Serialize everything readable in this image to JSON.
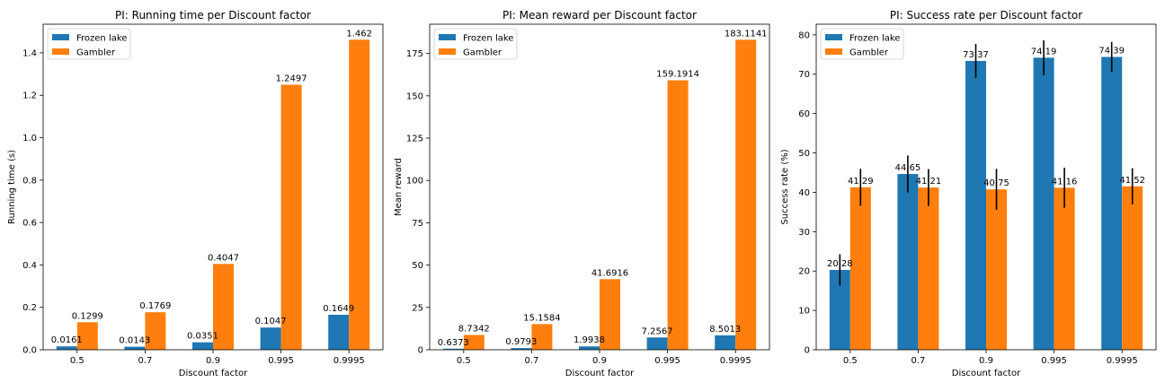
{
  "chart_data": [
    {
      "type": "bar",
      "title": "PI: Running time per Discount factor",
      "xlabel": "Discount factor",
      "ylabel": "Running time (s)",
      "categories": [
        "0.5",
        "0.7",
        "0.9",
        "0.995",
        "0.9995"
      ],
      "ylim": [
        0,
        1.535
      ],
      "yticks": [
        "0.0",
        "0.2",
        "0.4",
        "0.6",
        "0.8",
        "1.0",
        "1.2",
        "1.4"
      ],
      "ytick_values": [
        0,
        0.2,
        0.4,
        0.6,
        0.8,
        1.0,
        1.2,
        1.4
      ],
      "legend_position": "top-left",
      "grid": false,
      "series": [
        {
          "name": "Frozen lake",
          "color": "#1f77b4",
          "values": [
            0.0161,
            0.0143,
            0.0351,
            0.1047,
            0.1649
          ],
          "labels": [
            "0.0161",
            "0.0143",
            "0.0351",
            "0.1047",
            "0.1649"
          ]
        },
        {
          "name": "Gambler",
          "color": "#ff7f0e",
          "values": [
            0.1299,
            0.1769,
            0.4047,
            1.2497,
            1.462
          ],
          "labels": [
            "0.1299",
            "0.1769",
            "0.4047",
            "1.2497",
            "1.462"
          ]
        }
      ]
    },
    {
      "type": "bar",
      "title": "PI: Mean reward per Discount factor",
      "xlabel": "Discount factor",
      "ylabel": "Mean reward",
      "categories": [
        "0.5",
        "0.7",
        "0.9",
        "0.995",
        "0.9995"
      ],
      "ylim": [
        0,
        192.3
      ],
      "yticks": [
        "0",
        "25",
        "50",
        "75",
        "100",
        "125",
        "150",
        "175"
      ],
      "ytick_values": [
        0,
        25,
        50,
        75,
        100,
        125,
        150,
        175
      ],
      "legend_position": "top-left",
      "grid": false,
      "series": [
        {
          "name": "Frozen lake",
          "color": "#1f77b4",
          "values": [
            0.6373,
            0.9793,
            1.9938,
            7.2567,
            8.5013
          ],
          "labels": [
            "0.6373",
            "0.9793",
            "1.9938",
            "7.2567",
            "8.5013"
          ]
        },
        {
          "name": "Gambler",
          "color": "#ff7f0e",
          "values": [
            8.7342,
            15.1584,
            41.6916,
            159.1914,
            183.1141
          ],
          "labels": [
            "8.7342",
            "15.1584",
            "41.6916",
            "159.1914",
            "183.1141"
          ]
        }
      ]
    },
    {
      "type": "bar",
      "title": "PI: Success rate per Discount factor",
      "xlabel": "Discount factor",
      "ylabel": "Success rate (%)",
      "categories": [
        "0.5",
        "0.7",
        "0.9",
        "0.995",
        "0.9995"
      ],
      "ylim": [
        0,
        82.7
      ],
      "yticks": [
        "0",
        "10",
        "20",
        "30",
        "40",
        "50",
        "60",
        "70",
        "80"
      ],
      "ytick_values": [
        0,
        10,
        20,
        30,
        40,
        50,
        60,
        70,
        80
      ],
      "legend_position": "top-left",
      "grid": false,
      "series": [
        {
          "name": "Frozen lake",
          "color": "#1f77b4",
          "values": [
            20.28,
            44.65,
            73.37,
            74.19,
            74.39
          ],
          "labels": [
            "20.28",
            "44.65",
            "73.37",
            "74.19",
            "74.39"
          ],
          "errors": [
            4.0,
            4.7,
            4.3,
            4.4,
            3.8
          ]
        },
        {
          "name": "Gambler",
          "color": "#ff7f0e",
          "values": [
            41.29,
            41.21,
            40.75,
            41.16,
            41.52
          ],
          "labels": [
            "41.29",
            "41.21",
            "40.75",
            "41.16",
            "41.52"
          ],
          "errors": [
            4.7,
            4.7,
            5.2,
            5.1,
            4.6
          ]
        }
      ]
    }
  ]
}
